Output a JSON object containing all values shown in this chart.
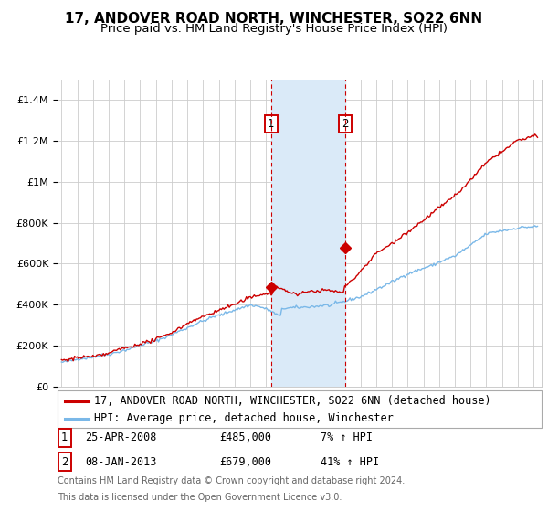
{
  "title": "17, ANDOVER ROAD NORTH, WINCHESTER, SO22 6NN",
  "subtitle": "Price paid vs. HM Land Registry's House Price Index (HPI)",
  "ylim": [
    0,
    1500000
  ],
  "yticks": [
    0,
    200000,
    400000,
    600000,
    800000,
    1000000,
    1200000,
    1400000
  ],
  "xlim_start": 1994.75,
  "xlim_end": 2025.5,
  "marker1_x": 2008.32,
  "marker1_y": 485000,
  "marker1_label": "1",
  "marker1_date": "25-APR-2008",
  "marker1_price": "£485,000",
  "marker1_hpi": "7% ↑ HPI",
  "marker2_x": 2013.03,
  "marker2_y": 679000,
  "marker2_label": "2",
  "marker2_date": "08-JAN-2013",
  "marker2_price": "£679,000",
  "marker2_hpi": "41% ↑ HPI",
  "hpi_line_color": "#7ab8e8",
  "price_line_color": "#cc0000",
  "marker_box_color": "#cc0000",
  "shaded_region_color": "#daeaf8",
  "grid_color": "#cccccc",
  "background_color": "#ffffff",
  "legend_line1": "17, ANDOVER ROAD NORTH, WINCHESTER, SO22 6NN (detached house)",
  "legend_line2": "HPI: Average price, detached house, Winchester",
  "footnote1": "Contains HM Land Registry data © Crown copyright and database right 2024.",
  "footnote2": "This data is licensed under the Open Government Licence v3.0.",
  "title_fontsize": 11,
  "subtitle_fontsize": 9.5,
  "tick_fontsize": 8,
  "legend_fontsize": 8.5
}
